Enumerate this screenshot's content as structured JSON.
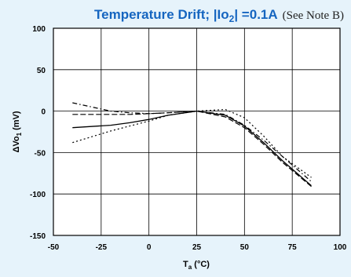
{
  "chart_data": {
    "type": "line",
    "title_main": "Temperature Drift; |Io",
    "title_sub_char": "2",
    "title_main_tail": "| =0.1A",
    "title_note": "(See Note B)",
    "xlabel": "T",
    "xlabel_sub": "a",
    "xlabel_unit": " (°C)",
    "ylabel": "ΔVo",
    "ylabel_sub": "1",
    "ylabel_unit": " (mV)",
    "xlim": [
      -50,
      100
    ],
    "ylim": [
      -150,
      100
    ],
    "xticks": [
      "-50",
      "-25",
      "0",
      "25",
      "50",
      "75",
      "100"
    ],
    "yticks": [
      "100",
      "50",
      "0",
      "-50",
      "-100",
      "-150"
    ],
    "grid": true,
    "series": [
      {
        "style": "solid",
        "x": [
          -40,
          -20,
          -10,
          0,
          10,
          25,
          40,
          50,
          60,
          70,
          85
        ],
        "y": [
          -20,
          -17,
          -14,
          -10,
          -5,
          0,
          -5,
          -18,
          -38,
          -60,
          -90
        ]
      },
      {
        "style": "dashed",
        "x": [
          -40,
          -20,
          -10,
          0,
          10,
          25,
          40,
          50,
          60,
          70,
          85
        ],
        "y": [
          -4,
          -4,
          -4,
          -3,
          -2,
          0,
          -7,
          -20,
          -40,
          -62,
          -91
        ]
      },
      {
        "style": "dashdot",
        "x": [
          -40,
          -30,
          -20,
          -10,
          0,
          10,
          25,
          40,
          50,
          60,
          70,
          85
        ],
        "y": [
          10,
          5,
          0,
          -2,
          -3,
          -2,
          0,
          -4,
          -17,
          -35,
          -55,
          -85
        ]
      },
      {
        "style": "dotted",
        "x": [
          -40,
          -30,
          -20,
          -10,
          0,
          10,
          25,
          40,
          50,
          60,
          70,
          85
        ],
        "y": [
          -38,
          -31,
          -24,
          -18,
          -12,
          -5,
          0,
          2,
          -8,
          -30,
          -55,
          -80
        ]
      }
    ]
  }
}
